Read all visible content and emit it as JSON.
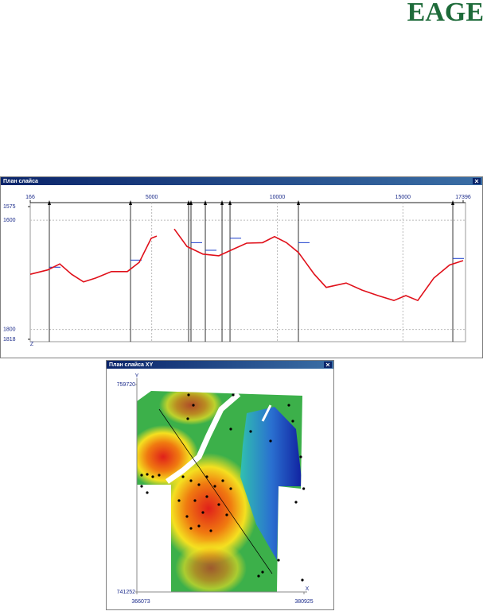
{
  "header": {
    "logo": "EAGE"
  },
  "windows": [
    {
      "title": "План слайса"
    },
    {
      "title": "План слайса XY"
    }
  ],
  "chart_data": [
    {
      "type": "line",
      "y_label": "Z",
      "x": [
        166,
        863,
        1341,
        1813,
        2288,
        2763,
        3397,
        4030,
        4505,
        4980,
        5202,
        5550,
        5899,
        6406,
        7040,
        7673,
        8148,
        8782,
        9415,
        9890,
        10365,
        10841,
        11474,
        11949,
        12741,
        13375,
        14008,
        14642,
        15117,
        15592,
        16226,
        16859,
        17396
      ],
      "series": [
        {
          "color": "#e0101a",
          "values": [
            1699,
            1691,
            1680,
            1699,
            1713,
            1706,
            1694,
            1694,
            1677,
            1633,
            1629,
            null,
            1616,
            1648,
            1662,
            1665,
            1655,
            1642,
            1641,
            1630,
            1641,
            1659,
            1699,
            1723,
            1715,
            1728,
            1738,
            1747,
            1738,
            1747,
            1706,
            1682,
            1674
          ]
        }
      ],
      "wells": {
        "color": "#000000",
        "top_color": "#1a3ccc",
        "x": [
          926,
          4157,
          6469,
          6564,
          7135,
          7800,
          8117,
          10840,
          16985
        ],
        "tops": [
          1686,
          1673,
          null,
          1641,
          1655,
          null,
          1633,
          1641,
          1670
        ]
      },
      "xlim": [
        166,
        17396
      ],
      "xticks": [
        166,
        5000,
        10000,
        15000,
        17396
      ],
      "ylim": [
        1818,
        1575
      ],
      "yticks": [
        1575,
        1600,
        1800,
        1818
      ],
      "grid": true
    },
    {
      "type": "scatter",
      "x_label": "X",
      "y_label": "Y",
      "color": "#000000",
      "x": [
        370670,
        371094,
        374630,
        370599,
        374418,
        376186,
        377954,
        379581,
        379934,
        380641,
        380900,
        380217,
        366497,
        366992,
        367487,
        368053,
        366992,
        366497,
        370175,
        370882,
        371589,
        372296,
        373004,
        373711,
        374418,
        369821,
        371236,
        372296,
        373357,
        370528,
        371943,
        374064,
        371589,
        372650,
        370882,
        377247,
        376893,
        380783,
        378661
      ],
      "y": [
        758800,
        757880,
        758800,
        756677,
        755757,
        755545,
        754696,
        757880,
        756465,
        753281,
        750450,
        749248,
        751653,
        751724,
        751512,
        751653,
        750097,
        750663,
        751512,
        751158,
        750804,
        751512,
        750663,
        751158,
        750450,
        749389,
        749389,
        749743,
        749035,
        747974,
        748328,
        748115,
        747125,
        746700,
        746912,
        743021,
        742667,
        742313,
        744082
      ],
      "xlim": [
        366073,
        380925
      ],
      "xticks": [
        366073,
        380925
      ],
      "ylim": [
        741252,
        759720
      ],
      "yticks": [
        741252,
        759720
      ]
    }
  ]
}
